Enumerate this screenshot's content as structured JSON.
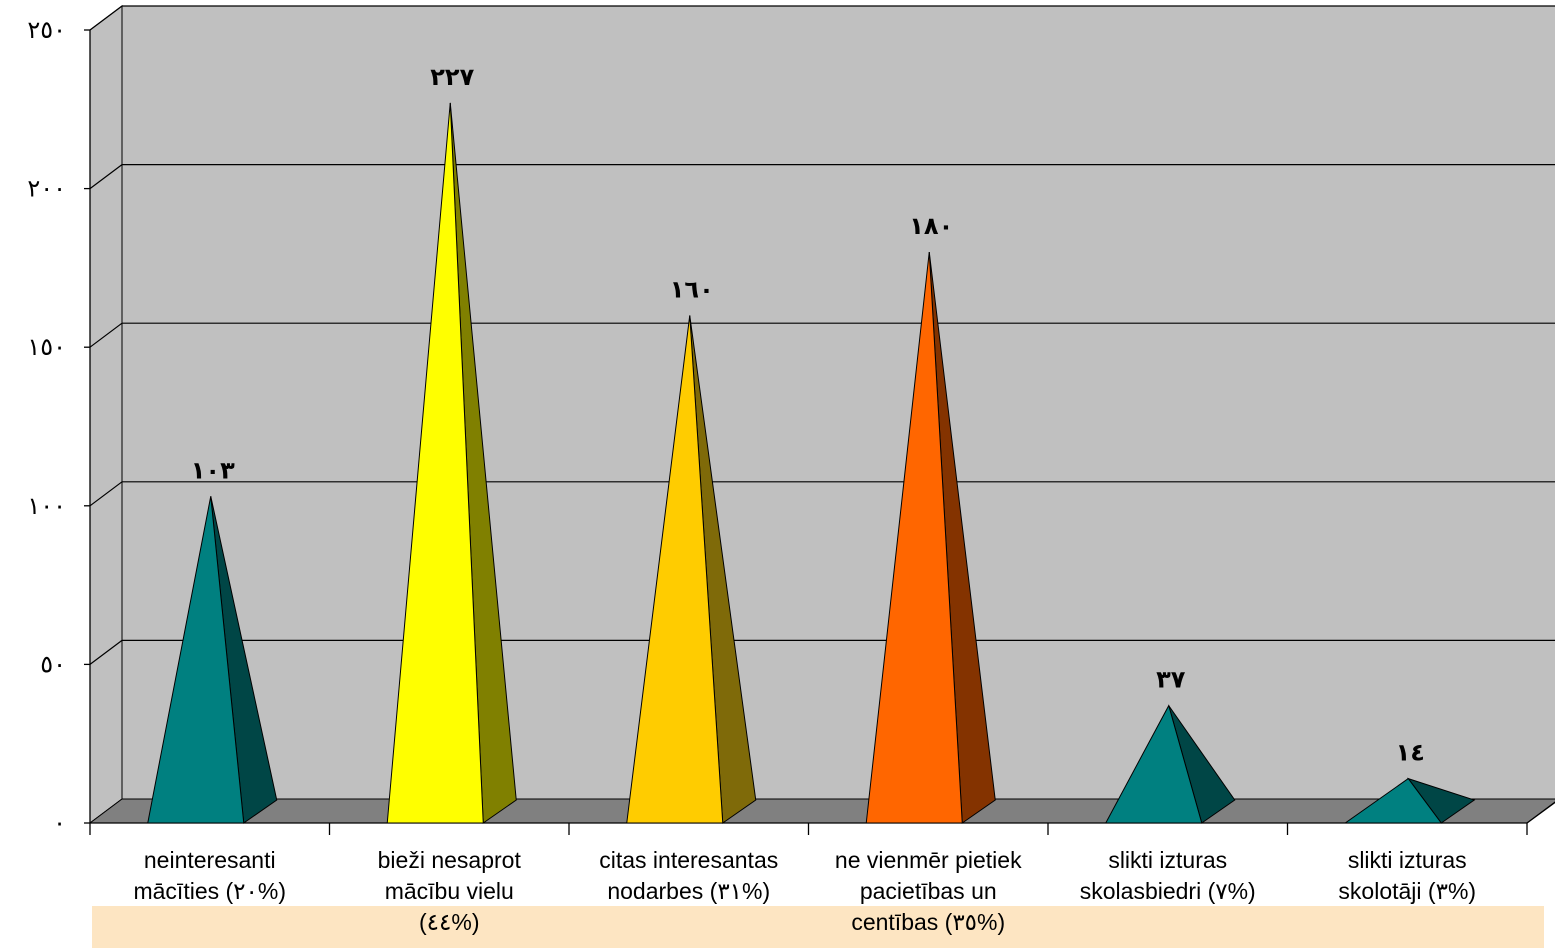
{
  "chart_data": {
    "type": "bar",
    "style": "3d-pyramid",
    "categories": [
      "neinteresanti mācīties (٢٠%)",
      "bieži nesaprot mācību vielu (٤٤%)",
      "citas interesantas nodarbes (٣١%)",
      "ne vienmēr pietiek pacietības un centības (٣٥%)",
      "slikti izturas skolasbiedri (٧%)",
      "slikti izturas skolotāji (٣%)"
    ],
    "category_lines": [
      [
        "neinteresanti",
        "mācīties (٢٠%)"
      ],
      [
        "bieži nesaprot",
        "mācību vielu",
        "(٤٤%)"
      ],
      [
        "citas interesantas",
        "nodarbes (٣١%)"
      ],
      [
        "ne vienmēr pietiek",
        "pacietības un",
        "centības (٣٥%)"
      ],
      [
        "slikti izturas",
        "skolasbiedri (٧%)"
      ],
      [
        "slikti izturas",
        "skolotāji (٣%)"
      ]
    ],
    "values": [
      103,
      227,
      160,
      180,
      37,
      14
    ],
    "data_labels": [
      "١٠٣",
      "٢٢٧",
      "١٦٠",
      "١٨٠",
      "٣٧",
      "١٤"
    ],
    "colors": [
      {
        "front": "#008080",
        "side": "#004646"
      },
      {
        "front": "#ffff00",
        "side": "#808000"
      },
      {
        "front": "#ffcc00",
        "side": "#7f6a09"
      },
      {
        "front": "#ff6600",
        "side": "#843300"
      },
      {
        "front": "#008080",
        "side": "#004646"
      },
      {
        "front": "#008080",
        "side": "#004646"
      }
    ],
    "ylim": [
      0,
      250
    ],
    "yticks": [
      0,
      50,
      100,
      150,
      200,
      250
    ],
    "ytick_labels": [
      "٠",
      "٥٠",
      "١٠٠",
      "١٥٠",
      "٢٠٠",
      "٢٥٠"
    ],
    "grid": true,
    "legend": false,
    "wall_color": "#c0c0c0",
    "floor_color": "#808080"
  }
}
